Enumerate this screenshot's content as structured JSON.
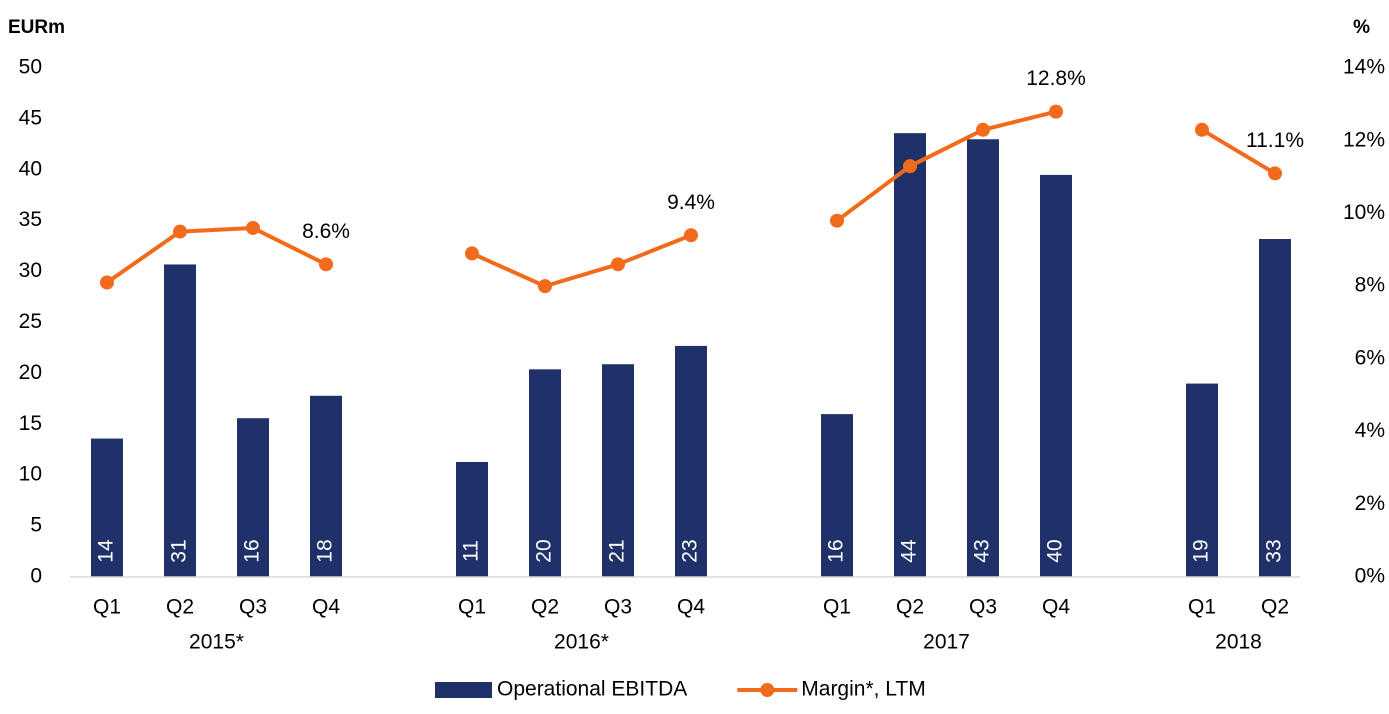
{
  "chart_data": {
    "type": "bar_line",
    "y_label": "EURm",
    "y2_label": "%",
    "groups": [
      {
        "name": "2015*",
        "categories": [
          "Q1",
          "Q2",
          "Q3",
          "Q4"
        ]
      },
      {
        "name": "2016*",
        "categories": [
          "Q1",
          "Q2",
          "Q3",
          "Q4"
        ]
      },
      {
        "name": "2017",
        "categories": [
          "Q1",
          "Q2",
          "Q3",
          "Q4"
        ]
      },
      {
        "name": "2018",
        "categories": [
          "Q1",
          "Q2"
        ]
      }
    ],
    "series": [
      {
        "name": "Operational EBITDA",
        "type": "bar",
        "color": "#1f3168",
        "values": [
          13.6,
          30.7,
          15.6,
          17.8,
          11.3,
          20.4,
          20.9,
          22.7,
          16.0,
          43.6,
          43.0,
          39.5,
          19.0,
          33.2
        ],
        "value_labels": [
          "14",
          "31",
          "16",
          "18",
          "11",
          "20",
          "21",
          "23",
          "16",
          "44",
          "43",
          "40",
          "19",
          "33"
        ]
      },
      {
        "name": "Margin*, LTM",
        "type": "line",
        "axis": "y2",
        "color": "#f26b1d",
        "values": [
          8.1,
          9.5,
          9.6,
          8.6,
          8.9,
          8.0,
          8.6,
          9.4,
          9.8,
          11.3,
          12.3,
          12.8,
          12.3,
          11.1
        ],
        "value_labels": [
          null,
          null,
          null,
          "8.6%",
          null,
          null,
          null,
          "9.4%",
          null,
          null,
          null,
          "12.8%",
          null,
          "11.1%"
        ]
      }
    ],
    "ylim": [
      0,
      50
    ],
    "yticks": [
      0,
      5,
      10,
      15,
      20,
      25,
      30,
      35,
      40,
      45,
      50
    ],
    "y2lim": [
      0,
      14
    ],
    "y2ticks": [
      {
        "value": 0,
        "label": "0%"
      },
      {
        "value": 2,
        "label": "2%"
      },
      {
        "value": 4,
        "label": "4%"
      },
      {
        "value": 6,
        "label": "6%"
      },
      {
        "value": 8,
        "label": "8%"
      },
      {
        "value": 10,
        "label": "10%"
      },
      {
        "value": 12,
        "label": "12%"
      },
      {
        "value": 14,
        "label": "14%"
      }
    ],
    "legend": "bottom"
  }
}
